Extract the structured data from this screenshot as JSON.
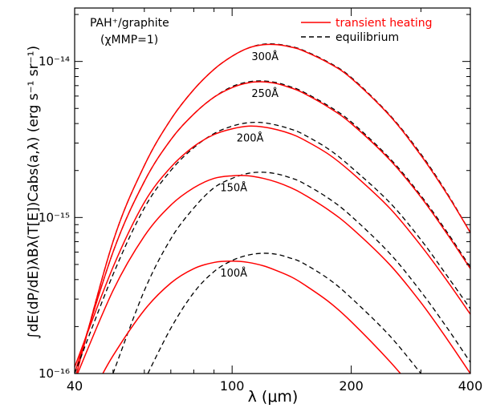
{
  "chart_data": {
    "type": "line",
    "x_scale": "log",
    "y_scale": "log",
    "xlim": [
      40,
      400
    ],
    "ylim": [
      1e-16,
      2.2e-14
    ],
    "x_ticks": [
      40,
      100,
      200,
      400
    ],
    "x_tick_labels": [
      "40",
      "100",
      "200",
      "400"
    ],
    "y_ticks": [
      1e-16,
      1e-15,
      1e-14
    ],
    "y_tick_labels": [
      "10⁻¹⁶",
      "10⁻¹⁵",
      "10⁻¹⁴"
    ],
    "xlabel": "λ (μm)",
    "ylabel": "∫dE(dP/dE)λBλ(T[E])Cabs(a,λ)   (erg s⁻¹ sr⁻¹)",
    "grid": false,
    "annotations": [
      {
        "text": "PAH⁺/graphite",
        "where": "top-left"
      },
      {
        "text": "(χMMP=1)",
        "where": "top-left"
      }
    ],
    "legend": {
      "placement": "top-right",
      "entries": [
        {
          "label": "transient heating",
          "color": "#ff0000",
          "dash": "solid"
        },
        {
          "label": "equilibrium",
          "color": "#000000",
          "dash": "dashed"
        }
      ]
    },
    "groups": [
      {
        "label": "300Å",
        "x": [
          40,
          50,
          60,
          70,
          80,
          90,
          100,
          110,
          120,
          130,
          140,
          150,
          175,
          200,
          250,
          300,
          350,
          400
        ],
        "transient": [
          9e-17,
          7e-16,
          2.15e-15,
          4.25e-15,
          6.6e-15,
          8.9e-15,
          1.08e-14,
          1.22e-14,
          1.28e-14,
          1.28e-14,
          1.24e-14,
          1.18e-14,
          9.8e-15,
          7.8e-15,
          4.5e-15,
          2.5e-15,
          1.4e-15,
          8e-16
        ],
        "equilibrium": [
          9e-17,
          7e-16,
          2.15e-15,
          4.25e-15,
          6.6e-15,
          8.9e-15,
          1.08e-14,
          1.22e-14,
          1.29e-14,
          1.29e-14,
          1.25e-14,
          1.19e-14,
          9.9e-15,
          7.9e-15,
          4.55e-15,
          2.55e-15,
          1.42e-15,
          8e-16
        ]
      },
      {
        "label": "250Å",
        "x": [
          40,
          50,
          60,
          70,
          80,
          90,
          100,
          110,
          120,
          130,
          140,
          150,
          175,
          200,
          250,
          300,
          350,
          400
        ],
        "transient": [
          1e-16,
          6e-16,
          1.7e-15,
          3.15e-15,
          4.6e-15,
          5.9e-15,
          6.8e-15,
          7.3e-15,
          7.4e-15,
          7.2e-15,
          6.8e-15,
          6.35e-15,
          5.1e-15,
          4e-15,
          2.35e-15,
          1.35e-15,
          7.8e-16,
          4.7e-16
        ],
        "equilibrium": [
          1e-16,
          6e-16,
          1.7e-15,
          3.15e-15,
          4.6e-15,
          5.9e-15,
          6.9e-15,
          7.4e-15,
          7.5e-15,
          7.3e-15,
          6.9e-15,
          6.45e-15,
          5.2e-15,
          4.1e-15,
          2.4e-15,
          1.38e-15,
          8e-16,
          4.8e-16
        ]
      },
      {
        "label": "200Å",
        "x": [
          40,
          50,
          60,
          70,
          80,
          90,
          100,
          110,
          120,
          130,
          140,
          150,
          175,
          200,
          250,
          300,
          350,
          400
        ],
        "transient": [
          1.1e-16,
          4.8e-16,
          1.25e-15,
          2.1e-15,
          2.85e-15,
          3.4e-15,
          3.7e-15,
          3.85e-15,
          3.8e-15,
          3.65e-15,
          3.45e-15,
          3.2e-15,
          2.55e-15,
          1.95e-15,
          1.15e-15,
          6.6e-16,
          3.9e-16,
          2.4e-16
        ],
        "equilibrium": [
          1e-16,
          4.3e-16,
          1.15e-15,
          2e-15,
          2.8e-15,
          3.45e-15,
          3.85e-15,
          4.05e-15,
          4.05e-15,
          3.9e-15,
          3.7e-15,
          3.45e-15,
          2.75e-15,
          2.1e-15,
          1.25e-15,
          7.2e-16,
          4.2e-16,
          2.6e-16
        ]
      },
      {
        "label": "150Å",
        "x": [
          40,
          50,
          60,
          70,
          80,
          90,
          100,
          110,
          120,
          130,
          140,
          150,
          175,
          200,
          250,
          300,
          350,
          400
        ],
        "transient": [
          9e-17,
          3.4e-16,
          7.6e-16,
          1.2e-15,
          1.55e-15,
          1.78e-15,
          1.85e-15,
          1.85e-15,
          1.78e-15,
          1.68e-15,
          1.56e-15,
          1.43e-15,
          1.12e-15,
          8.6e-16,
          5e-16,
          2.85e-16,
          1.65e-16,
          1e-16
        ],
        "equilibrium": [
          null,
          1e-16,
          3.4e-16,
          7.3e-16,
          1.15e-15,
          1.55e-15,
          1.78e-15,
          1.92e-15,
          1.95e-15,
          1.9e-15,
          1.8e-15,
          1.68e-15,
          1.33e-15,
          1.02e-15,
          5.9e-16,
          3.35e-16,
          1.95e-16,
          1.18e-16
        ]
      },
      {
        "label": "100Å",
        "x": [
          40,
          45,
          50,
          60,
          70,
          80,
          90,
          100,
          110,
          120,
          130,
          140,
          150,
          175,
          200,
          250,
          300,
          350,
          400
        ],
        "transient": [
          null,
          8e-17,
          1.3e-16,
          2.55e-16,
          3.8e-16,
          4.7e-16,
          5.15e-16,
          5.25e-16,
          5.15e-16,
          4.9e-16,
          4.55e-16,
          4.2e-16,
          3.8e-16,
          2.9e-16,
          2.15e-16,
          1.2e-16,
          7e-17,
          null,
          null
        ],
        "equilibrium": [
          null,
          null,
          null,
          9e-17,
          1.95e-16,
          3.3e-16,
          4.5e-16,
          5.3e-16,
          5.75e-16,
          5.9e-16,
          5.8e-16,
          5.5e-16,
          5.15e-16,
          4.05e-16,
          3.05e-16,
          1.75e-16,
          1e-16,
          null,
          null
        ]
      }
    ]
  }
}
